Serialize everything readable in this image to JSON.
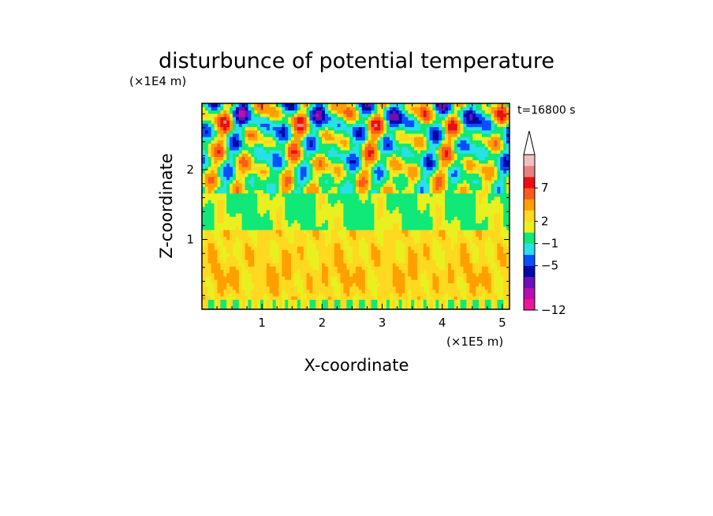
{
  "chart_data": {
    "type": "heatmap",
    "title": "disturbunce of potential temperature",
    "xlabel": "X-coordinate",
    "ylabel": "Z-coordinate",
    "x_unit": "(×1E5 m)",
    "y_unit": "(×1E4 m)",
    "time_label": "t=16800 s",
    "xlim": [
      0,
      5.12
    ],
    "ylim": [
      0,
      2.95
    ],
    "x_ticks": [
      {
        "value": 1,
        "label": "1"
      },
      {
        "value": 2,
        "label": "2"
      },
      {
        "value": 3,
        "label": "3"
      },
      {
        "value": 4,
        "label": "4"
      },
      {
        "value": 5,
        "label": "5"
      }
    ],
    "y_ticks": [
      {
        "value": 1,
        "label": "1"
      },
      {
        "value": 2,
        "label": "2"
      }
    ],
    "colorbar": {
      "bounds": [
        -12,
        -11,
        -9,
        -7,
        -5,
        -3,
        -1,
        1,
        2,
        3,
        5,
        7,
        9,
        11
      ],
      "labels": [
        {
          "value": -12,
          "label": "−12"
        },
        {
          "value": -5,
          "label": "−5"
        },
        {
          "value": -1,
          "label": "−1"
        },
        {
          "value": 2,
          "label": "2"
        },
        {
          "value": 7,
          "label": "7"
        }
      ],
      "colors": [
        "#e8189a",
        "#b810b0",
        "#6e10b8",
        "#0008a8",
        "#0850ff",
        "#28e0e8",
        "#10e878",
        "#e8f020",
        "#ffd820",
        "#ffa000",
        "#ff5a1c",
        "#e81010",
        "#e88080"
      ],
      "extend_color": "#f0c0c0"
    }
  }
}
